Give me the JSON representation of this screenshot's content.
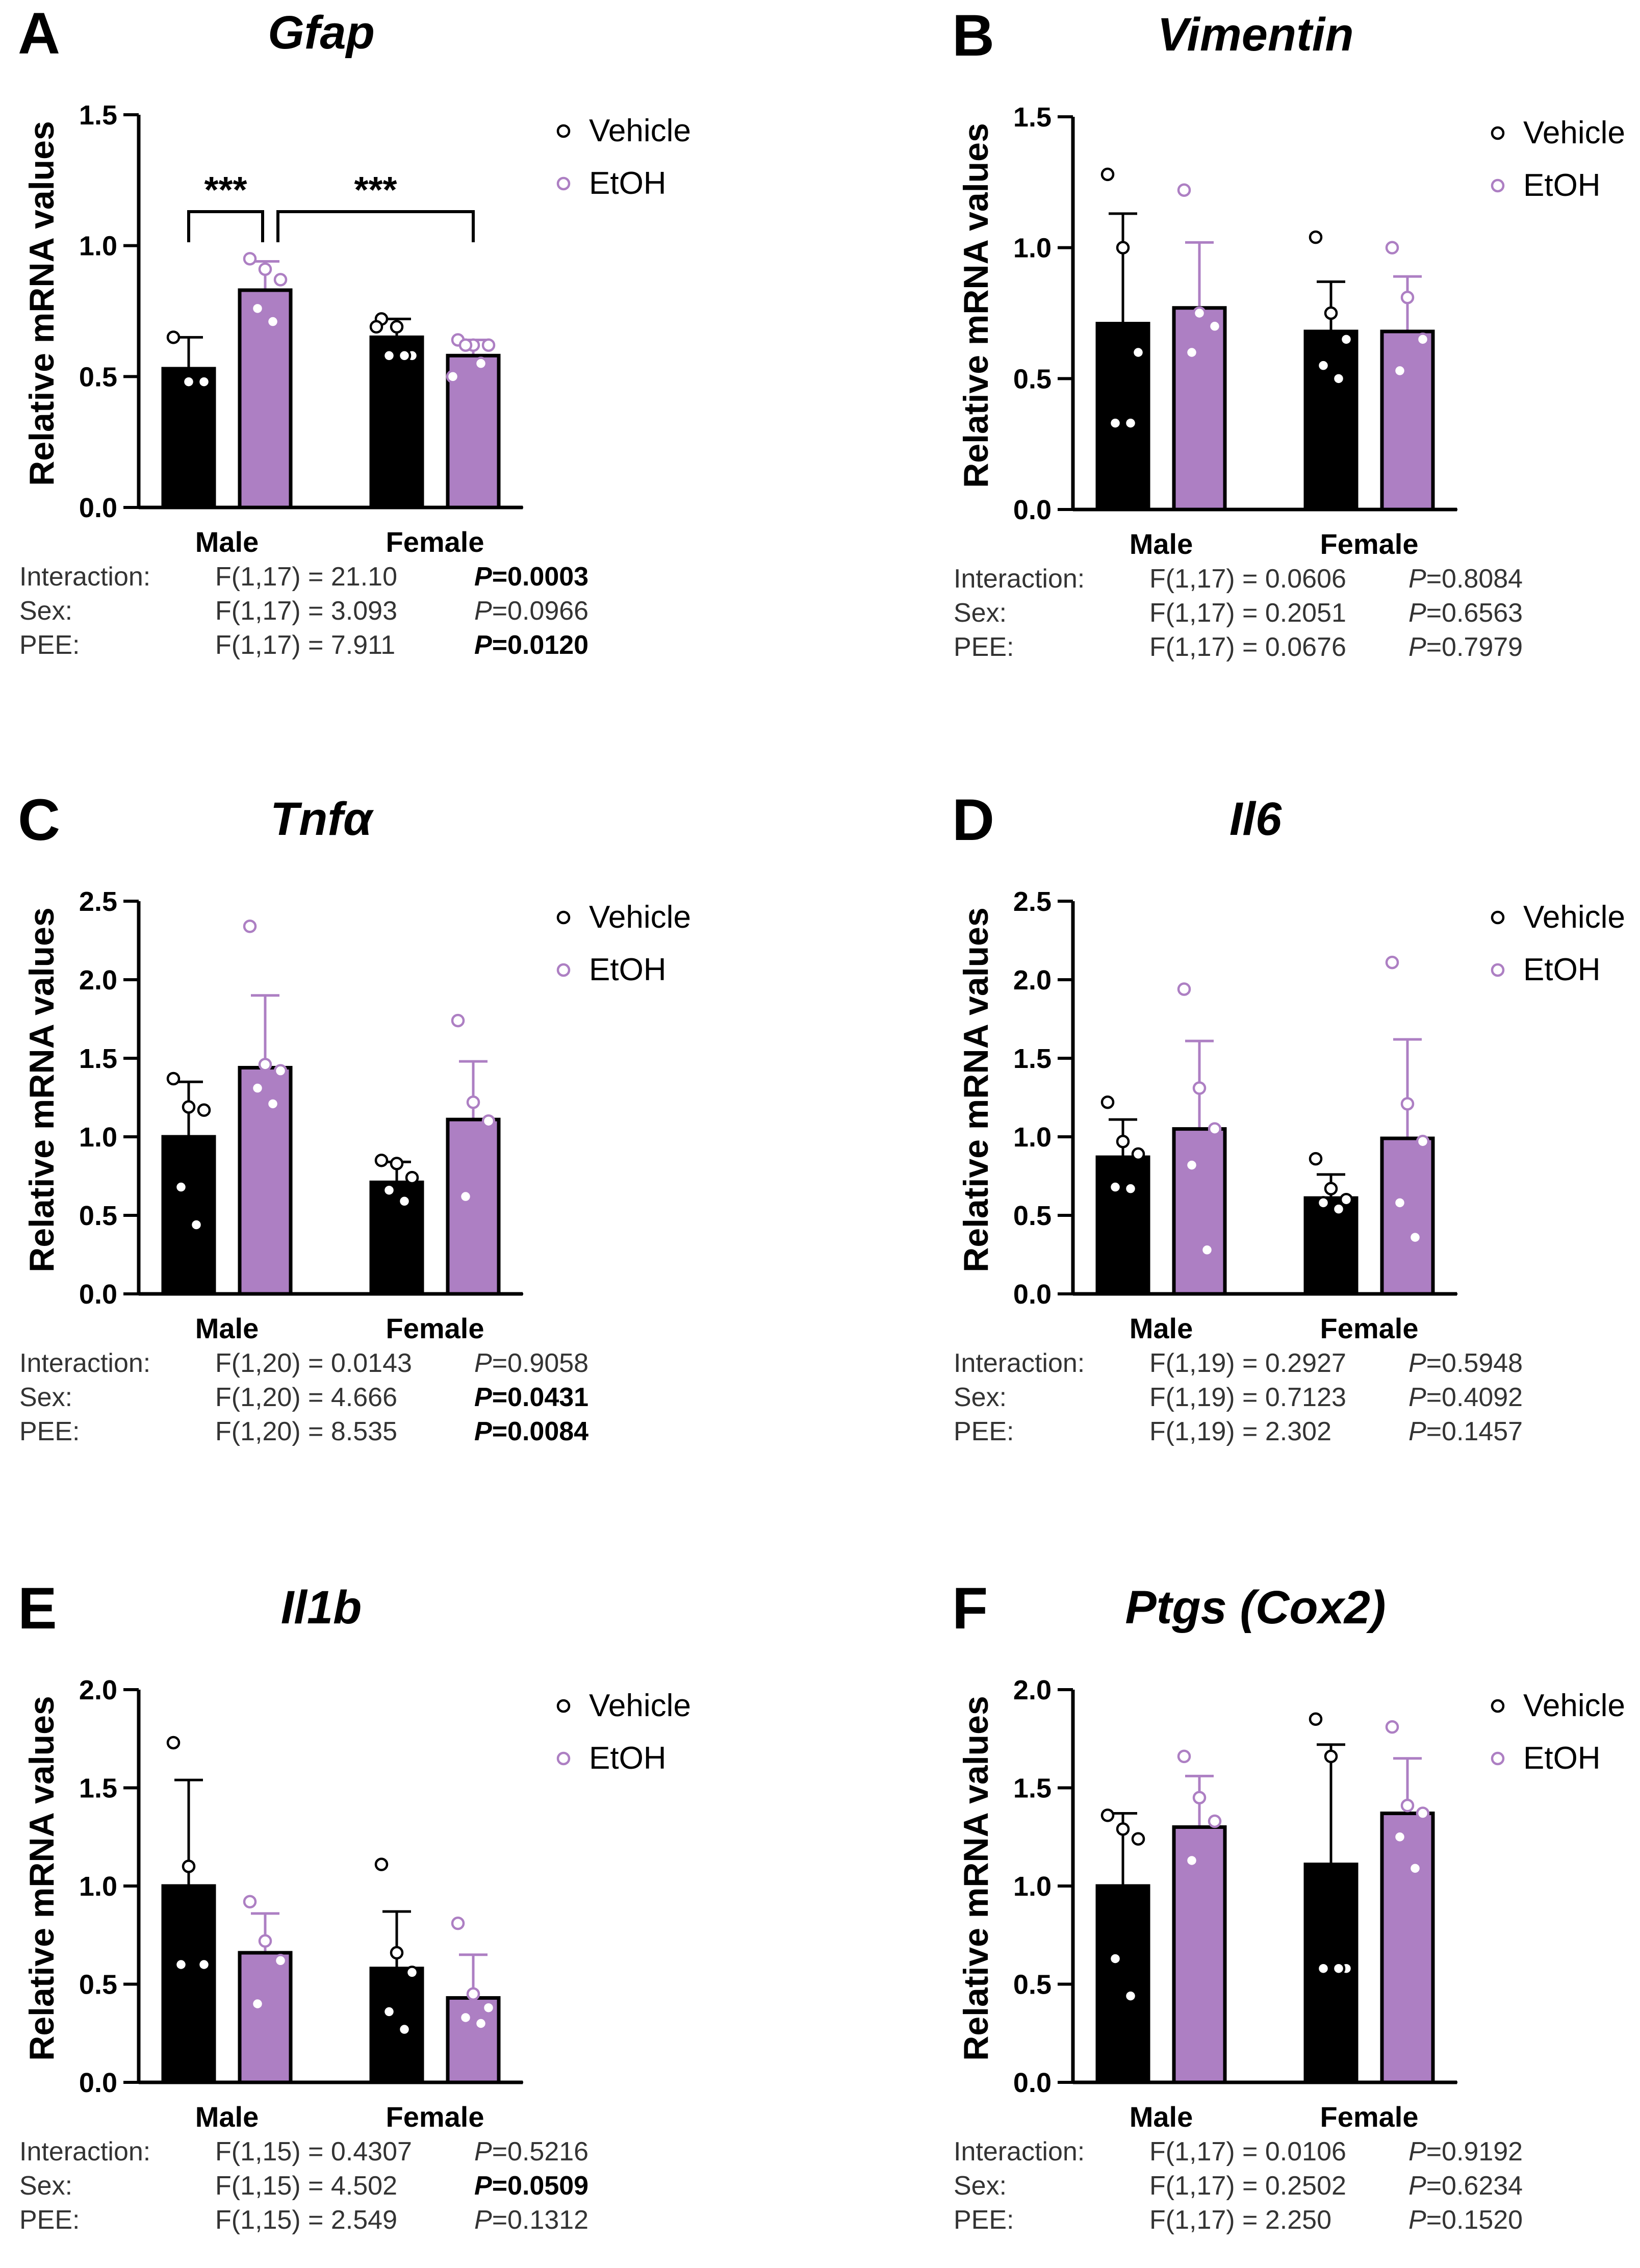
{
  "colors": {
    "vehicle": "#000000",
    "etoh": "#ad7fc3",
    "etoh_point": "#ad7fc3"
  },
  "legend": {
    "vehicle": "Vehicle",
    "etoh": "EtOH"
  },
  "ylabel": "Relative mRNA values",
  "groups": [
    "Male",
    "Female"
  ],
  "chart_data": [
    {
      "panel": "A",
      "title": "Gfap",
      "type": "bar",
      "ylim": [
        0,
        1.5
      ],
      "yticks": [
        "0.0",
        "0.5",
        "1.0",
        "1.5"
      ],
      "ytick_values": [
        0,
        0.5,
        1.0,
        1.5
      ],
      "categories": [
        "Male",
        "Female"
      ],
      "ylabel": "Relative mRNA values",
      "series": [
        {
          "name": "Vehicle",
          "values": [
            0.53,
            0.65
          ],
          "errors": [
            0.12,
            0.07
          ],
          "points": [
            [
              0.65,
              0.48,
              0.48
            ],
            [
              0.72,
              0.69,
              0.58,
              0.58,
              0.58,
              0.69
            ]
          ]
        },
        {
          "name": "EtOH",
          "values": [
            0.83,
            0.58
          ],
          "errors": [
            0.11,
            0.06
          ],
          "points": [
            [
              0.95,
              0.91,
              0.87,
              0.76,
              0.71
            ],
            [
              0.64,
              0.62,
              0.62,
              0.62,
              0.55,
              0.5
            ]
          ]
        }
      ],
      "significance": [
        {
          "from": "Male Vehicle",
          "to": "Male EtOH",
          "label": "***"
        },
        {
          "from": "Male EtOH",
          "to": "Female EtOH",
          "label": "***"
        }
      ],
      "stats": [
        {
          "term": "Interaction:",
          "f": "F(1,17) = 21.10",
          "p_value": "=0.0003",
          "bold": true
        },
        {
          "term": "Sex:",
          "f": "F(1,17) = 3.093",
          "p_value": "=0.0966",
          "bold": false
        },
        {
          "term": "PEE:",
          "f": "F(1,17) = 7.911",
          "p_value": "=0.0120",
          "bold": true
        }
      ]
    },
    {
      "panel": "B",
      "title": "Vimentin",
      "type": "bar",
      "ylim": [
        0,
        1.5
      ],
      "yticks": [
        "0.0",
        "0.5",
        "1.0",
        "1.5"
      ],
      "ytick_values": [
        0,
        0.5,
        1.0,
        1.5
      ],
      "categories": [
        "Male",
        "Female"
      ],
      "ylabel": "Relative mRNA values",
      "series": [
        {
          "name": "Vehicle",
          "values": [
            0.71,
            0.68
          ],
          "errors": [
            0.42,
            0.19
          ],
          "points": [
            [
              1.28,
              1.0,
              0.6,
              0.33,
              0.33
            ],
            [
              1.04,
              0.75,
              0.65,
              0.55,
              0.5
            ]
          ]
        },
        {
          "name": "EtOH",
          "values": [
            0.77,
            0.68
          ],
          "errors": [
            0.25,
            0.21
          ],
          "points": [
            [
              1.22,
              0.75,
              0.7,
              0.6
            ],
            [
              1.0,
              0.81,
              0.65,
              0.53
            ]
          ]
        }
      ],
      "stats": [
        {
          "term": "Interaction:",
          "f": "F(1,17) = 0.0606",
          "p_value": "=0.8084",
          "bold": false
        },
        {
          "term": "Sex:",
          "f": "F(1,17) = 0.2051",
          "p_value": "=0.6563",
          "bold": false
        },
        {
          "term": "PEE:",
          "f": "F(1,17) = 0.0676",
          "p_value": "=0.7979",
          "bold": false
        }
      ]
    },
    {
      "panel": "C",
      "title": "Tnfα",
      "type": "bar",
      "ylim": [
        0,
        2.5
      ],
      "yticks": [
        "0.0",
        "0.5",
        "1.0",
        "1.5",
        "2.0",
        "2.5"
      ],
      "ytick_values": [
        0,
        0.5,
        1.0,
        1.5,
        2.0,
        2.5
      ],
      "categories": [
        "Male",
        "Female"
      ],
      "ylabel": "Relative mRNA values",
      "series": [
        {
          "name": "Vehicle",
          "values": [
            1.0,
            0.71
          ],
          "errors": [
            0.35,
            0.13
          ],
          "points": [
            [
              1.37,
              1.19,
              1.17,
              0.68,
              0.44
            ],
            [
              0.85,
              0.83,
              0.74,
              0.66,
              0.59
            ]
          ]
        },
        {
          "name": "EtOH",
          "values": [
            1.44,
            1.11
          ],
          "errors": [
            0.46,
            0.37
          ],
          "points": [
            [
              2.34,
              1.46,
              1.42,
              1.31,
              1.21
            ],
            [
              1.74,
              1.22,
              1.1,
              0.62
            ]
          ]
        }
      ],
      "stats": [
        {
          "term": "Interaction:",
          "f": "F(1,20) = 0.0143",
          "p_value": "=0.9058",
          "bold": false
        },
        {
          "term": "Sex:",
          "f": "F(1,20) = 4.666",
          "p_value": "=0.0431",
          "bold": true
        },
        {
          "term": "PEE:",
          "f": "F(1,20) = 8.535",
          "p_value": "=0.0084",
          "bold": true
        }
      ]
    },
    {
      "panel": "D",
      "title": "Il6",
      "type": "bar",
      "ylim": [
        0,
        2.5
      ],
      "yticks": [
        "0.0",
        "0.5",
        "1.0",
        "1.5",
        "2.0",
        "2.5"
      ],
      "ytick_values": [
        0,
        0.5,
        1.0,
        1.5,
        2.0,
        2.5
      ],
      "categories": [
        "Male",
        "Female"
      ],
      "ylabel": "Relative mRNA values",
      "series": [
        {
          "name": "Vehicle",
          "values": [
            0.87,
            0.61
          ],
          "errors": [
            0.24,
            0.15
          ],
          "points": [
            [
              1.22,
              0.97,
              0.89,
              0.68,
              0.67
            ],
            [
              0.86,
              0.67,
              0.6,
              0.58,
              0.54
            ]
          ]
        },
        {
          "name": "EtOH",
          "values": [
            1.05,
            0.99
          ],
          "errors": [
            0.56,
            0.63
          ],
          "points": [
            [
              1.94,
              1.31,
              1.05,
              0.82,
              0.28
            ],
            [
              2.11,
              1.21,
              0.97,
              0.58,
              0.36
            ]
          ]
        }
      ],
      "stats": [
        {
          "term": "Interaction:",
          "f": "F(1,19) = 0.2927",
          "p_value": "=0.5948",
          "bold": false
        },
        {
          "term": "Sex:",
          "f": "F(1,19) = 0.7123",
          "p_value": "=0.4092",
          "bold": false
        },
        {
          "term": "PEE:",
          "f": "F(1,19) = 2.302",
          "p_value": "=0.1457",
          "bold": false
        }
      ]
    },
    {
      "panel": "E",
      "title": "Il1b",
      "type": "bar",
      "ylim": [
        0,
        2.0
      ],
      "yticks": [
        "0.0",
        "0.5",
        "1.0",
        "1.5",
        "2.0"
      ],
      "ytick_values": [
        0,
        0.5,
        1.0,
        1.5,
        2.0
      ],
      "categories": [
        "Male",
        "Female"
      ],
      "ylabel": "Relative mRNA values",
      "series": [
        {
          "name": "Vehicle",
          "values": [
            1.0,
            0.58
          ],
          "errors": [
            0.54,
            0.29
          ],
          "points": [
            [
              1.73,
              1.1,
              0.6,
              0.6
            ],
            [
              1.11,
              0.66,
              0.56,
              0.36,
              0.27
            ]
          ]
        },
        {
          "name": "EtOH",
          "values": [
            0.66,
            0.43
          ],
          "errors": [
            0.2,
            0.22
          ],
          "points": [
            [
              0.92,
              0.72,
              0.62,
              0.4
            ],
            [
              0.81,
              0.45,
              0.38,
              0.33,
              0.3
            ]
          ]
        }
      ],
      "stats": [
        {
          "term": "Interaction:",
          "f": "F(1,15) = 0.4307",
          "p_value": "=0.5216",
          "bold": false
        },
        {
          "term": "Sex:",
          "f": "F(1,15) = 4.502",
          "p_value": "=0.0509",
          "bold": true
        },
        {
          "term": "PEE:",
          "f": "F(1,15) = 2.549",
          "p_value": "=0.1312",
          "bold": false
        }
      ]
    },
    {
      "panel": "F",
      "title": "Ptgs (Cox2)",
      "type": "bar",
      "ylim": [
        0,
        2.0
      ],
      "yticks": [
        "0.0",
        "0.5",
        "1.0",
        "1.5",
        "2.0"
      ],
      "ytick_values": [
        0,
        0.5,
        1.0,
        1.5,
        2.0
      ],
      "categories": [
        "Male",
        "Female"
      ],
      "ylabel": "Relative mRNA values",
      "series": [
        {
          "name": "Vehicle",
          "values": [
            1.0,
            1.11
          ],
          "errors": [
            0.37,
            0.61
          ],
          "points": [
            [
              1.36,
              1.29,
              1.24,
              0.63,
              0.44
            ],
            [
              1.85,
              1.66,
              0.58,
              0.58,
              0.58
            ]
          ]
        },
        {
          "name": "EtOH",
          "values": [
            1.3,
            1.37
          ],
          "errors": [
            0.26,
            0.28
          ],
          "points": [
            [
              1.66,
              1.45,
              1.33,
              1.13
            ],
            [
              1.81,
              1.41,
              1.37,
              1.25,
              1.09
            ]
          ]
        }
      ],
      "stats": [
        {
          "term": "Interaction:",
          "f": "F(1,17) = 0.0106",
          "p_value": "=0.9192",
          "bold": false
        },
        {
          "term": "Sex:",
          "f": "F(1,17) = 0.2502",
          "p_value": "=0.6234",
          "bold": false
        },
        {
          "term": "PEE:",
          "f": "F(1,17) = 2.250",
          "p_value": "=0.1520",
          "bold": false
        }
      ]
    }
  ]
}
